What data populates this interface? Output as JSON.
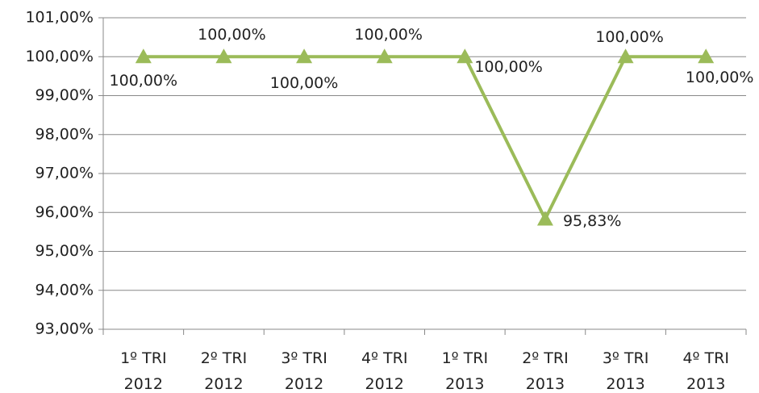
{
  "chart_data": {
    "type": "line",
    "categories": [
      "1º TRI 2012",
      "2º TRI 2012",
      "3º TRI 2012",
      "4º TRI 2012",
      "1º TRI 2013",
      "2º TRI 2013",
      "3º TRI 2013",
      "4º TRI 2013"
    ],
    "series": [
      {
        "color": "#9bbb59",
        "values": [
          100,
          100,
          100,
          100,
          100,
          95.83,
          100,
          100
        ],
        "value_labels": [
          "100,00%",
          "100,00%",
          "100,00%",
          "100,00%",
          "100,00%",
          "95,83%",
          "100,00%",
          "100,00%"
        ]
      }
    ],
    "ylim": [
      93,
      101
    ],
    "yticks": [
      {
        "value": 93,
        "label": "93,00%"
      },
      {
        "value": 94,
        "label": "94,00%"
      },
      {
        "value": 95,
        "label": "95,00%"
      },
      {
        "value": 96,
        "label": "96,00%"
      },
      {
        "value": 97,
        "label": "97,00%"
      },
      {
        "value": 98,
        "label": "98,00%"
      },
      {
        "value": 99,
        "label": "99,00%"
      },
      {
        "value": 100,
        "label": "100,00%"
      },
      {
        "value": 101,
        "label": "101,00%"
      }
    ],
    "grid": true
  }
}
